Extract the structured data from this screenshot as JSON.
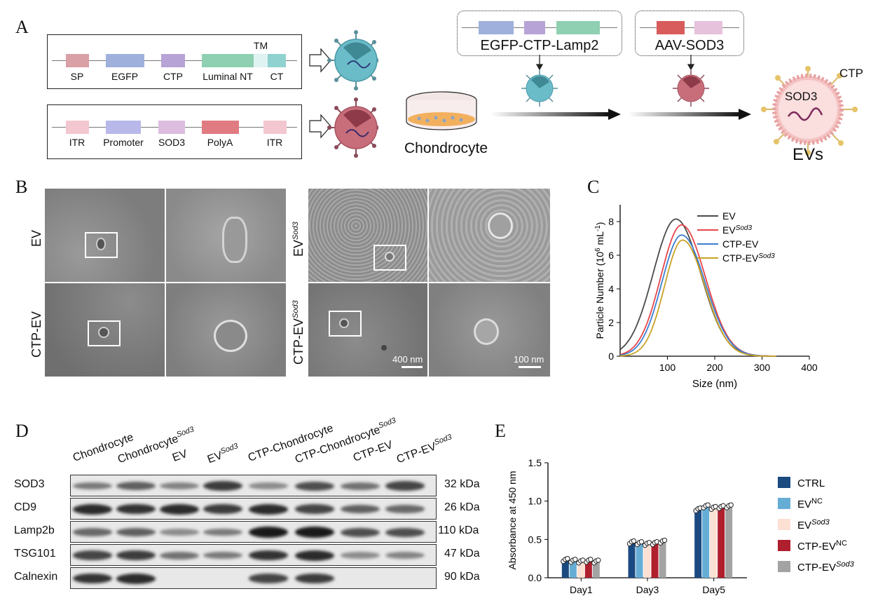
{
  "panels": {
    "a": "A",
    "b": "B",
    "c": "C",
    "d": "D",
    "e": "E"
  },
  "panel_a": {
    "construct1": [
      {
        "label": "SP",
        "color": "#d9a0a6"
      },
      {
        "label": "EGFP",
        "color": "#9fb0dc"
      },
      {
        "label": "CTP",
        "color": "#b7a3d6"
      },
      {
        "label": "Luminal NT",
        "color": "#8fcfb2"
      },
      {
        "label": "TM",
        "color": "#dff3f2"
      },
      {
        "label": "CT",
        "color": "#8fd2cf"
      }
    ],
    "construct2": [
      {
        "label": "ITR",
        "color": "#f3c7cf"
      },
      {
        "label": "Promoter",
        "color": "#b8b8ea"
      },
      {
        "label": "SOD3",
        "color": "#dcbde0"
      },
      {
        "label": "PolyA",
        "color": "#e07b82"
      },
      {
        "label": "ITR",
        "color": "#f3c7cf"
      }
    ],
    "box1_title": "EGFP-CTP-Lamp2",
    "box2_title": "AAV-SOD3",
    "chondrocyte_label": "Chondrocyte",
    "ev_label": "EVs",
    "ev_cargo": "SOD3",
    "ev_ligand": "CTP"
  },
  "panel_b": {
    "left_rows": [
      "EV",
      "CTP-EV"
    ],
    "right_rows": [
      {
        "base": "EV",
        "sup": "Sod3"
      },
      {
        "base": "CTP-EV",
        "sup": "Sod3"
      }
    ],
    "scale_1": "400 nm",
    "scale_2": "100 nm"
  },
  "panel_d": {
    "columns": [
      {
        "base": "Chondrocyte",
        "sup": ""
      },
      {
        "base": "Chondrocyte",
        "sup": "Sod3"
      },
      {
        "base": "EV",
        "sup": ""
      },
      {
        "base": "EV",
        "sup": "Sod3"
      },
      {
        "base": "CTP-Chondrocyte",
        "sup": ""
      },
      {
        "base": "CTP-Chondrocyte",
        "sup": "Sod3"
      },
      {
        "base": "CTP-EV",
        "sup": ""
      },
      {
        "base": "CTP-EV",
        "sup": "Sod3"
      }
    ],
    "rows": [
      {
        "label": "SOD3",
        "kda": "32 kDa",
        "intensity": [
          0.45,
          0.6,
          0.4,
          0.8,
          0.35,
          0.7,
          0.5,
          0.75
        ]
      },
      {
        "label": "CD9",
        "kda": "26 kDa",
        "intensity": [
          0.9,
          0.85,
          0.9,
          0.8,
          0.9,
          0.75,
          0.6,
          0.55
        ]
      },
      {
        "label": "Lamp2b",
        "kda": "110 kDa",
        "intensity": [
          0.55,
          0.6,
          0.35,
          0.45,
          1.0,
          1.0,
          0.7,
          0.7
        ]
      },
      {
        "label": "TSG101",
        "kda": "47 kDa",
        "intensity": [
          0.75,
          0.8,
          0.5,
          0.45,
          0.85,
          0.9,
          0.35,
          0.4
        ]
      },
      {
        "label": "Calnexin",
        "kda": "90 kDa",
        "intensity": [
          0.85,
          0.9,
          0.0,
          0.0,
          0.75,
          0.8,
          0.0,
          0.0
        ]
      }
    ]
  },
  "chart_data": [
    {
      "type": "line",
      "xlabel": "Size (nm)",
      "ylabel": "Particle Number (10^6 mL^-1)",
      "xlim": [
        0,
        400
      ],
      "ylim": [
        0,
        9
      ],
      "xticks": [
        100,
        200,
        300,
        400
      ],
      "yticks": [
        0,
        2,
        4,
        6,
        8
      ],
      "legend_position": "top-right",
      "series": [
        {
          "name": "EV",
          "name_sup": "",
          "color": "#4a4a4a",
          "peak_x": 118,
          "peak_y": 8.15,
          "sigma_left": 48,
          "sigma_right": 52
        },
        {
          "name": "EV",
          "name_sup": "Sod3",
          "color": "#e8454a",
          "peak_x": 130,
          "peak_y": 7.8,
          "sigma_left": 44,
          "sigma_right": 50
        },
        {
          "name": "CTP-EV",
          "name_sup": "",
          "color": "#3d7fd0",
          "peak_x": 130,
          "peak_y": 7.2,
          "sigma_left": 42,
          "sigma_right": 50
        },
        {
          "name": "CTP-EV",
          "name_sup": "Sod3",
          "color": "#c9a227",
          "peak_x": 132,
          "peak_y": 6.9,
          "sigma_left": 38,
          "sigma_right": 47
        }
      ]
    },
    {
      "type": "bar",
      "categories": [
        "Day1",
        "Day3",
        "Day5"
      ],
      "ylabel": "Absorbance at 450 nm",
      "ylim": [
        0,
        1.5
      ],
      "yticks": [
        0.0,
        0.5,
        1.0,
        1.5
      ],
      "legend_position": "right",
      "series": [
        {
          "name": "CTRL",
          "name_sup": "",
          "color": "#1a4a80",
          "values": [
            0.22,
            0.45,
            0.88
          ]
        },
        {
          "name": "EV",
          "name_sup": "NC",
          "color": "#66add6",
          "values": [
            0.21,
            0.44,
            0.92
          ]
        },
        {
          "name": "EV",
          "name_sup": "Sod3",
          "color": "#fbe0d3",
          "values": [
            0.2,
            0.43,
            0.9
          ]
        },
        {
          "name": "CTP-EV",
          "name_sup": "NC",
          "color": "#b01f2e",
          "values": [
            0.21,
            0.44,
            0.91
          ]
        },
        {
          "name": "CTP-EV",
          "name_sup": "Sod3",
          "color": "#a3a3a3",
          "values": [
            0.2,
            0.46,
            0.92
          ]
        }
      ]
    }
  ]
}
